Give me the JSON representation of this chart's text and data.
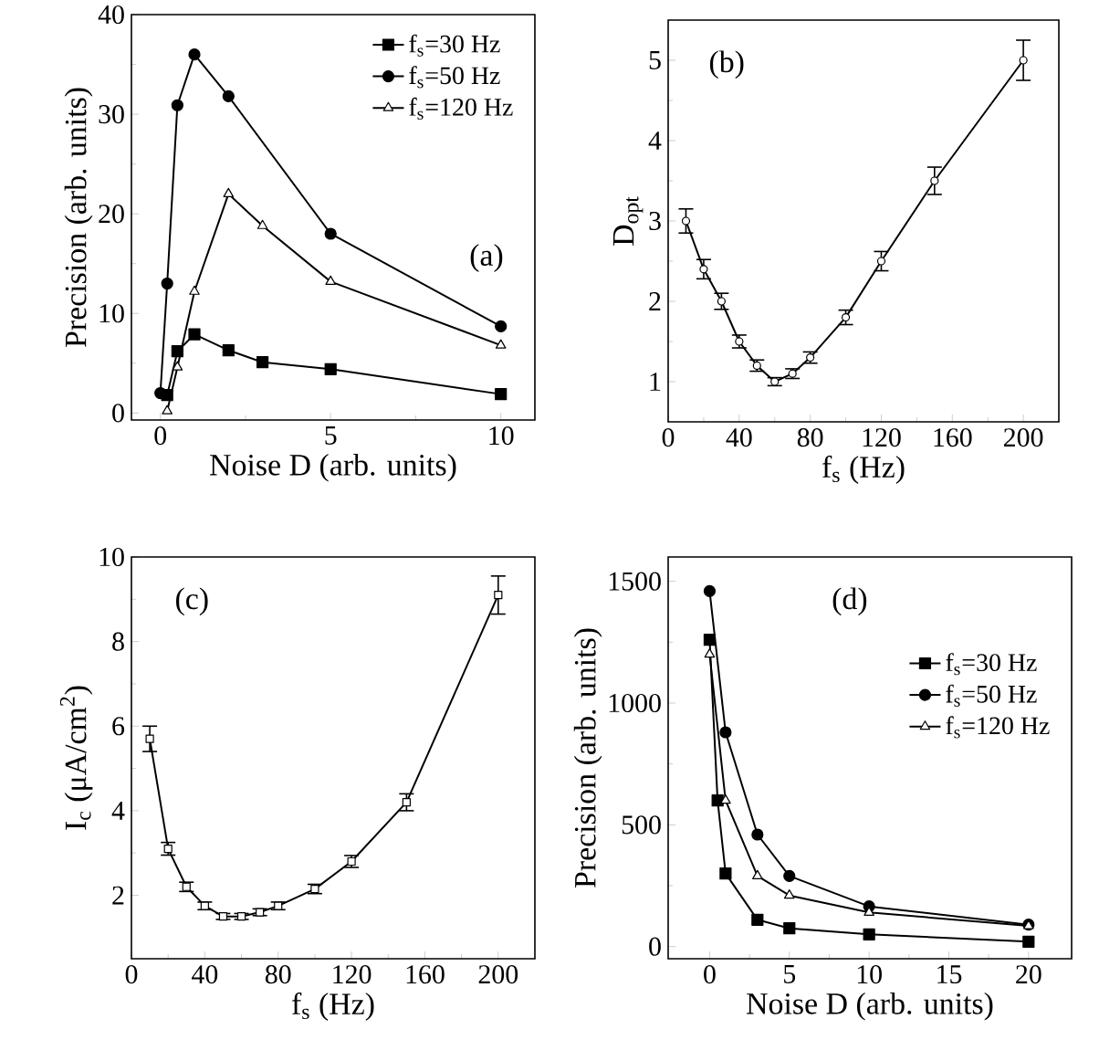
{
  "chart_data": [
    {
      "type": "line",
      "xlabel": "Noise D (arb. units)",
      "ylabel": "Precision (arb. units)",
      "xlim": [
        -0.85,
        11
      ],
      "ylim": [
        -0.7,
        40
      ],
      "xticks": [
        0,
        5,
        10
      ],
      "yticks": [
        0,
        10,
        20,
        30,
        40
      ],
      "legend": "top right",
      "line_style": "solid",
      "annotations": [
        "(a)"
      ],
      "series": [
        {
          "name": "f$_{s}$=30 Hz",
          "color": "#000000",
          "marker": "square",
          "x": [
            0.2,
            0.5,
            1,
            2,
            3,
            5,
            10
          ],
          "values": [
            1.8,
            6.2,
            7.9,
            6.3,
            5.1,
            4.4,
            1.9
          ]
        },
        {
          "name": "f$_{s}$=50 Hz",
          "color": "#000000",
          "marker": "circle",
          "x": [
            0,
            0.2,
            0.5,
            1,
            2,
            5,
            10
          ],
          "values": [
            2.0,
            13,
            30.9,
            36,
            31.8,
            18,
            8.7
          ]
        },
        {
          "name": "f$_{s}$=120 Hz",
          "color": "#000000",
          "marker": "triangle",
          "x": [
            0.2,
            0.5,
            1,
            2,
            3,
            5,
            10
          ],
          "values": [
            0.2,
            4.6,
            12.2,
            22,
            18.8,
            13.2,
            6.8
          ]
        }
      ]
    },
    {
      "type": "line",
      "xlabel": "f$_{s}$ (Hz)",
      "ylabel": "D$_{opt}$",
      "xlim": [
        0,
        220
      ],
      "ylim": [
        0.5,
        5.5
      ],
      "xticks": [
        0,
        40,
        80,
        120,
        160,
        200
      ],
      "yticks": [
        1,
        2,
        3,
        4,
        5
      ],
      "line_style": "solid",
      "annotations": [
        "(b)"
      ],
      "series": [
        {
          "color": "#000000",
          "marker": "circle",
          "x": [
            10,
            20,
            30,
            40,
            50,
            60,
            70,
            80,
            100,
            120,
            150,
            200
          ],
          "values": [
            3.0,
            2.4,
            2.0,
            1.5,
            1.2,
            1.0,
            1.1,
            1.3,
            1.8,
            2.5,
            3.5,
            5.0
          ],
          "errors": [
            0.15,
            0.12,
            0.1,
            0.08,
            0.07,
            0.05,
            0.06,
            0.07,
            0.09,
            0.12,
            0.17,
            0.25
          ]
        }
      ]
    },
    {
      "type": "line",
      "xlabel": "f$_{s}$ (Hz)",
      "ylabel": "I$_{c}$ (μA/cm$^{2}$)",
      "xlim": [
        0,
        220
      ],
      "ylim": [
        0.5,
        10
      ],
      "xticks": [
        0,
        40,
        80,
        120,
        160,
        200
      ],
      "yticks": [
        2,
        4,
        6,
        8,
        10
      ],
      "line_style": "solid",
      "annotations": [
        "(c)"
      ],
      "series": [
        {
          "color": "#000000",
          "marker": "square",
          "x": [
            10,
            20,
            30,
            40,
            50,
            60,
            70,
            80,
            100,
            120,
            150,
            200
          ],
          "values": [
            5.7,
            3.1,
            2.2,
            1.75,
            1.5,
            1.5,
            1.6,
            1.75,
            2.15,
            2.8,
            4.2,
            9.1
          ],
          "errors": [
            0.3,
            0.15,
            0.11,
            0.09,
            0.07,
            0.07,
            0.08,
            0.09,
            0.11,
            0.14,
            0.2,
            0.45
          ]
        }
      ]
    },
    {
      "type": "line",
      "xlabel": "Noise D (arb. units)",
      "ylabel": "Precision (arb. units)",
      "xlim": [
        -2.6,
        22.7
      ],
      "ylim": [
        -50,
        1600
      ],
      "xticks": [
        0,
        5,
        10,
        15,
        20
      ],
      "yticks": [
        0,
        500,
        1000,
        1500
      ],
      "legend": "right",
      "line_style": "solid",
      "annotations": [
        "(d)"
      ],
      "series": [
        {
          "name": "f$_{s}$=30 Hz",
          "color": "#000000",
          "marker": "square",
          "x": [
            0,
            0.5,
            1,
            3,
            5,
            10,
            20
          ],
          "values": [
            1260,
            600,
            300,
            110,
            75,
            50,
            20
          ]
        },
        {
          "name": "f$_{s}$=50 Hz",
          "color": "#000000",
          "marker": "circle",
          "x": [
            0,
            1,
            3,
            5,
            10,
            20
          ],
          "values": [
            1460,
            880,
            460,
            290,
            165,
            90
          ]
        },
        {
          "name": "f$_{s}$=120 Hz",
          "color": "#000000",
          "marker": "triangle",
          "x": [
            0,
            1,
            3,
            5,
            10,
            20
          ],
          "values": [
            1200,
            600,
            290,
            210,
            140,
            85
          ]
        }
      ]
    }
  ]
}
